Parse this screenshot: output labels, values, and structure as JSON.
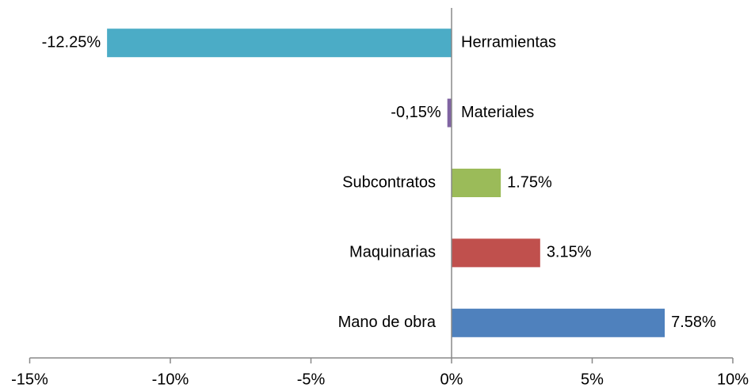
{
  "chart_data": {
    "type": "bar",
    "orientation": "horizontal",
    "categories": [
      "Herramientas",
      "Materiales",
      "Subcontratos",
      "Maquinarias",
      "Mano de obra"
    ],
    "values": [
      -12.25,
      -0.15,
      1.75,
      3.15,
      7.58
    ],
    "value_labels": [
      "-12.25%",
      "-0,15%",
      "1.75%",
      "3.15%",
      "7.58%"
    ],
    "colors": [
      "#4bacc6",
      "#8064a2",
      "#9bbb59",
      "#c0504d",
      "#4f81bd"
    ],
    "xlim": [
      -15,
      10
    ],
    "xticks": [
      {
        "value": -15,
        "label": "-15%"
      },
      {
        "value": -10,
        "label": "-10%"
      },
      {
        "value": -5,
        "label": "-5%"
      },
      {
        "value": 0,
        "label": "0%"
      },
      {
        "value": 5,
        "label": "5%"
      },
      {
        "value": 10,
        "label": "10%"
      }
    ]
  }
}
